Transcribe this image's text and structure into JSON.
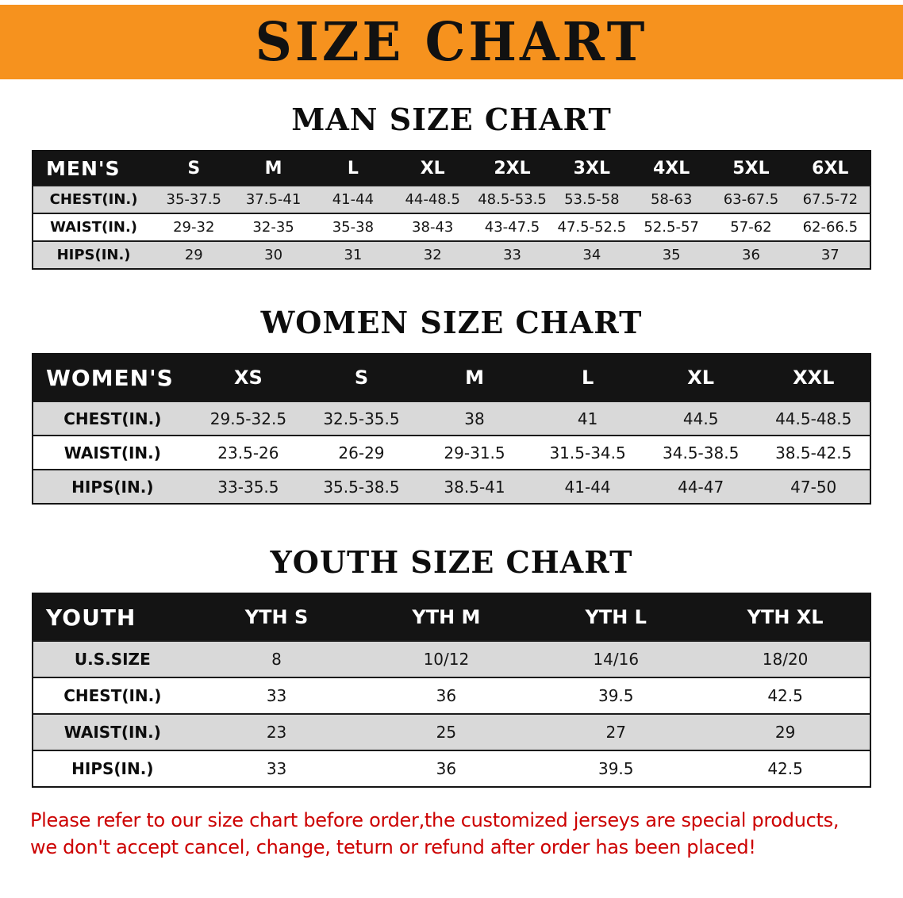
{
  "banner": {
    "title": "SIZE CHART",
    "bg_color": "#F6921E",
    "text_color": "#111111"
  },
  "chart_data": [
    {
      "type": "table",
      "title": "MAN SIZE CHART",
      "corner_label": "MEN'S",
      "columns": [
        "S",
        "M",
        "L",
        "XL",
        "2XL",
        "3XL",
        "4XL",
        "5XL",
        "6XL"
      ],
      "rows": [
        {
          "label": "CHEST(IN.)",
          "values": [
            "35-37.5",
            "37.5-41",
            "41-44",
            "44-48.5",
            "48.5-53.5",
            "53.5-58",
            "58-63",
            "63-67.5",
            "67.5-72"
          ]
        },
        {
          "label": "WAIST(IN.)",
          "values": [
            "29-32",
            "32-35",
            "35-38",
            "38-43",
            "43-47.5",
            "47.5-52.5",
            "52.5-57",
            "57-62",
            "62-66.5"
          ]
        },
        {
          "label": "HIPS(IN.)",
          "values": [
            "29",
            "30",
            "31",
            "32",
            "33",
            "34",
            "35",
            "36",
            "37"
          ]
        }
      ]
    },
    {
      "type": "table",
      "title": "WOMEN SIZE CHART",
      "corner_label": "WOMEN'S",
      "columns": [
        "XS",
        "S",
        "M",
        "L",
        "XL",
        "XXL"
      ],
      "rows": [
        {
          "label": "CHEST(IN.)",
          "values": [
            "29.5-32.5",
            "32.5-35.5",
            "38",
            "41",
            "44.5",
            "44.5-48.5"
          ]
        },
        {
          "label": "WAIST(IN.)",
          "values": [
            "23.5-26",
            "26-29",
            "29-31.5",
            "31.5-34.5",
            "34.5-38.5",
            "38.5-42.5"
          ]
        },
        {
          "label": "HIPS(IN.)",
          "values": [
            "33-35.5",
            "35.5-38.5",
            "38.5-41",
            "41-44",
            "44-47",
            "47-50"
          ]
        }
      ]
    },
    {
      "type": "table",
      "title": "YOUTH SIZE CHART",
      "corner_label": "YOUTH",
      "columns": [
        "YTH S",
        "YTH M",
        "YTH L",
        "YTH XL"
      ],
      "rows": [
        {
          "label": "U.S.SIZE",
          "values": [
            "8",
            "10/12",
            "14/16",
            "18/20"
          ]
        },
        {
          "label": "CHEST(IN.)",
          "values": [
            "33",
            "36",
            "39.5",
            "42.5"
          ]
        },
        {
          "label": "WAIST(IN.)",
          "values": [
            "23",
            "25",
            "27",
            "29"
          ]
        },
        {
          "label": "HIPS(IN.)",
          "values": [
            "33",
            "36",
            "39.5",
            "42.5"
          ]
        }
      ]
    }
  ],
  "footer_note": {
    "line1": "Please refer to our size chart before order,the customized jerseys are special products,",
    "line2": "we don't accept cancel, change, teturn or refund after order has been placed!",
    "color": "#CC0000"
  },
  "colors": {
    "row_stripe": "#D9D9D9",
    "table_header_bg": "#141414",
    "table_header_text": "#FFFFFF"
  }
}
